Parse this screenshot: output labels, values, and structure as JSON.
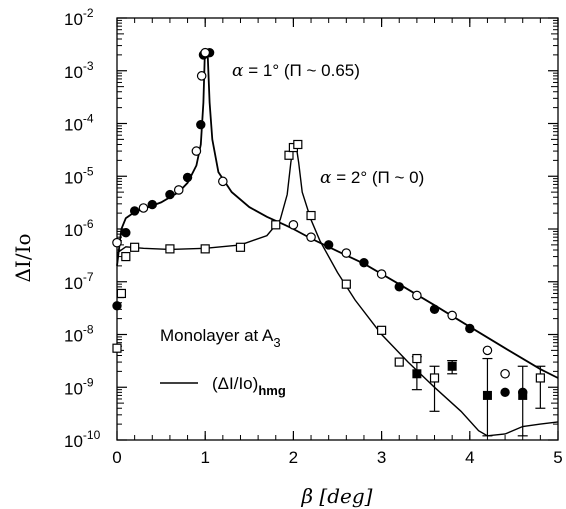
{
  "chart_data": {
    "type": "scatter",
    "title": "",
    "xlabel": "β [deg]",
    "ylabel": "ΔI/Io",
    "xlim": [
      0,
      5
    ],
    "ylim_log10": [
      -10,
      -2
    ],
    "y_scale": "log",
    "x_ticks": [
      0,
      1,
      2,
      3,
      4,
      5
    ],
    "x_tick_labels": [
      "0",
      "1",
      "2",
      "3",
      "4",
      "5"
    ],
    "y_ticks_exp": [
      -10,
      -9,
      -8,
      -7,
      -6,
      -5,
      -4,
      -3,
      -2
    ],
    "y_tick_labels": [
      {
        "base": "10",
        "exp": "-10"
      },
      {
        "base": "10",
        "exp": "-9"
      },
      {
        "base": "10",
        "exp": "-8"
      },
      {
        "base": "10",
        "exp": "-7"
      },
      {
        "base": "10",
        "exp": "-6"
      },
      {
        "base": "10",
        "exp": "-5"
      },
      {
        "base": "10",
        "exp": "-4"
      },
      {
        "base": "10",
        "exp": "-3"
      },
      {
        "base": "10",
        "exp": "-2"
      }
    ],
    "grid": false,
    "annotations": {
      "alpha1": {
        "alpha": "α",
        "text": " = 1° (Π ~ 0.65)"
      },
      "alpha2": {
        "alpha": "α",
        "text": " = 2° (Π ~ 0)"
      },
      "monolayer": {
        "text": "Monolayer at A",
        "sub": "3"
      },
      "legend_line": {
        "text": "(ΔI/Io)",
        "sub": "hmg"
      }
    },
    "series": [
      {
        "marker": "filled-circle",
        "points": [
          [
            0.0,
            3.5e-08
          ],
          [
            0.1,
            8.5e-07
          ],
          [
            0.2,
            2.2e-06
          ],
          [
            0.4,
            2.9e-06
          ],
          [
            0.6,
            4.5e-06
          ],
          [
            0.8,
            9.5e-06
          ],
          [
            0.95,
            9.5e-05
          ],
          [
            0.98,
            0.002
          ],
          [
            1.05,
            0.0022
          ],
          [
            2.4,
            5e-07
          ],
          [
            2.8,
            2.3e-07
          ],
          [
            3.2,
            8e-08
          ],
          [
            3.6,
            3e-08
          ],
          [
            4.0,
            1.3e-08
          ],
          [
            4.4,
            8e-10
          ],
          [
            4.6,
            8e-10
          ]
        ]
      },
      {
        "marker": "open-circle",
        "points": [
          [
            0.0,
            5.5e-07
          ],
          [
            0.3,
            2.5e-06
          ],
          [
            0.7,
            5.5e-06
          ],
          [
            0.9,
            3e-05
          ],
          [
            0.96,
            0.0008
          ],
          [
            1.0,
            0.0022
          ],
          [
            1.2,
            8e-06
          ],
          [
            2.0,
            1.2e-06
          ],
          [
            2.2,
            7e-07
          ],
          [
            2.6,
            3.5e-07
          ],
          [
            3.0,
            1.4e-07
          ],
          [
            3.4,
            5.5e-08
          ],
          [
            3.8,
            2.3e-08
          ],
          [
            4.2,
            5e-09
          ],
          [
            4.4,
            1.8e-09
          ]
        ]
      },
      {
        "marker": "open-square",
        "points": [
          [
            0.0,
            5.5e-09
          ],
          [
            0.05,
            6e-08
          ],
          [
            0.1,
            3e-07
          ],
          [
            0.2,
            4.5e-07
          ],
          [
            0.6,
            4.2e-07
          ],
          [
            1.0,
            4.2e-07
          ],
          [
            1.4,
            4.5e-07
          ],
          [
            1.8,
            1.2e-06
          ],
          [
            1.95,
            2.5e-05
          ],
          [
            2.0,
            3.5e-05
          ],
          [
            2.05,
            4e-05
          ],
          [
            2.2,
            1.8e-06
          ],
          [
            2.6,
            9e-08
          ],
          [
            3.0,
            1.2e-08
          ],
          [
            3.2,
            3e-09
          ],
          [
            3.4,
            3.5e-09
          ],
          [
            3.6,
            1.5e-09
          ],
          [
            4.8,
            1.5e-09
          ]
        ]
      },
      {
        "marker": "filled-square",
        "points": [
          [
            3.4,
            1.8e-09
          ],
          [
            3.8,
            2.5e-09
          ],
          [
            4.2,
            7e-10
          ],
          [
            4.6,
            7e-10
          ]
        ]
      }
    ],
    "error_bars": [
      {
        "x": 3.4,
        "y": 2e-09,
        "lo": 9e-10,
        "hi": 3.8e-09
      },
      {
        "x": 3.6,
        "y": 1.5e-09,
        "lo": 3.5e-10,
        "hi": 2.5e-09
      },
      {
        "x": 3.8,
        "y": 2.5e-09,
        "lo": 1.8e-09,
        "hi": 3.2e-09
      },
      {
        "x": 4.2,
        "y": 7e-10,
        "lo": 1.2e-10,
        "hi": 3.5e-09
      },
      {
        "x": 4.6,
        "y": 7e-10,
        "lo": 1.2e-10,
        "hi": 2.5e-09
      },
      {
        "x": 4.8,
        "y": 1.5e-09,
        "lo": 4e-10,
        "hi": 2.5e-09
      }
    ],
    "fit_curves": [
      {
        "name": "(ΔI/Io)hmg",
        "points": [
          [
            0.0,
            2e-07
          ],
          [
            0.05,
            1e-06
          ],
          [
            0.1,
            1.6e-06
          ],
          [
            0.2,
            2.1e-06
          ],
          [
            0.3,
            2.4e-06
          ],
          [
            0.5,
            3.2e-06
          ],
          [
            0.7,
            5e-06
          ],
          [
            0.8,
            7.5e-06
          ],
          [
            0.9,
            1.6e-05
          ],
          [
            0.95,
            4e-05
          ],
          [
            0.98,
            0.00025
          ],
          [
            0.995,
            0.002
          ],
          [
            1.01,
            0.0023
          ],
          [
            1.03,
            0.0018
          ],
          [
            1.05,
            0.00025
          ],
          [
            1.08,
            5e-05
          ],
          [
            1.15,
            1.2e-05
          ],
          [
            1.3,
            5e-06
          ],
          [
            1.5,
            2.6e-06
          ],
          [
            1.7,
            1.7e-06
          ],
          [
            1.9,
            1.2e-06
          ],
          [
            2.0,
            1e-06
          ],
          [
            2.2,
            6.6e-07
          ],
          [
            2.5,
            3.8e-07
          ],
          [
            2.8,
            2.2e-07
          ],
          [
            3.2,
            9e-08
          ],
          [
            3.6,
            3.6e-08
          ],
          [
            4.0,
            1.4e-08
          ],
          [
            4.4,
            5.5e-09
          ],
          [
            4.8,
            2.2e-09
          ],
          [
            5.0,
            1.5e-09
          ]
        ]
      },
      {
        "name": "(ΔI/Io)hmg",
        "points": [
          [
            0.0,
            3.5e-07
          ],
          [
            0.1,
            4.6e-07
          ],
          [
            0.3,
            4.3e-07
          ],
          [
            0.6,
            4.1e-07
          ],
          [
            1.0,
            4.3e-07
          ],
          [
            1.4,
            5e-07
          ],
          [
            1.7,
            7.5e-07
          ],
          [
            1.85,
            1.5e-06
          ],
          [
            1.93,
            4.5e-06
          ],
          [
            1.97,
            1.8e-05
          ],
          [
            2.0,
            4e-05
          ],
          [
            2.03,
            4e-05
          ],
          [
            2.06,
            1.8e-05
          ],
          [
            2.1,
            5e-06
          ],
          [
            2.2,
            1.5e-06
          ],
          [
            2.3,
            6e-07
          ],
          [
            2.5,
            1.5e-07
          ],
          [
            2.7,
            4.5e-08
          ],
          [
            3.0,
            1e-08
          ],
          [
            3.3,
            3e-09
          ],
          [
            3.6,
            1e-09
          ],
          [
            3.9,
            3.5e-10
          ],
          [
            4.1,
            1.5e-10
          ],
          [
            4.2,
            1.2e-10
          ],
          [
            4.4,
            1.3e-10
          ],
          [
            4.6,
            1.8e-10
          ],
          [
            4.8,
            2e-10
          ],
          [
            5.0,
            2.2e-10
          ]
        ]
      }
    ]
  }
}
